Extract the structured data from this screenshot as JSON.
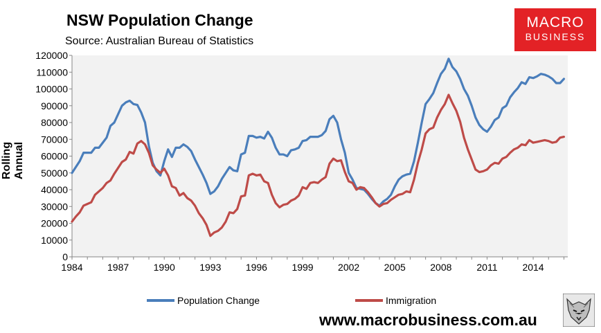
{
  "header": {
    "title": "NSW Population Change",
    "source": "Source: Australian Bureau of Statistics"
  },
  "logo": {
    "line1": "MACRO",
    "line2": "BUSINESS"
  },
  "footer": {
    "url": "www.macrobusiness.com.au"
  },
  "colors": {
    "population": "#4a7ebb",
    "immigration": "#be4b48",
    "plot_bg": "#f2f2f2",
    "logo_bg": "#e32226"
  },
  "chart_data": {
    "type": "line",
    "title": "NSW Population Change",
    "ylabel": "Rolling Annual",
    "xlabel": "",
    "ylim": [
      0,
      120000
    ],
    "xlim": [
      1984,
      2016.25
    ],
    "yticks": [
      0,
      10000,
      20000,
      30000,
      40000,
      50000,
      60000,
      70000,
      80000,
      90000,
      100000,
      110000,
      120000
    ],
    "xticks": [
      1984,
      1987,
      1990,
      1993,
      1996,
      1999,
      2002,
      2005,
      2008,
      2011,
      2014
    ],
    "legend_position": "bottom",
    "grid": false,
    "series": [
      {
        "name": "Population Change",
        "color": "#4a7ebb",
        "points": [
          [
            1984.0,
            50000
          ],
          [
            1984.5,
            57000
          ],
          [
            1984.75,
            62000
          ],
          [
            1985.0,
            62000
          ],
          [
            1985.25,
            62000
          ],
          [
            1985.5,
            65000
          ],
          [
            1985.75,
            65000
          ],
          [
            1986.0,
            68000
          ],
          [
            1986.25,
            71000
          ],
          [
            1986.5,
            78000
          ],
          [
            1986.75,
            80000
          ],
          [
            1987.0,
            85000
          ],
          [
            1987.25,
            90000
          ],
          [
            1987.5,
            92000
          ],
          [
            1987.75,
            93000
          ],
          [
            1988.0,
            91000
          ],
          [
            1988.25,
            90500
          ],
          [
            1988.5,
            86000
          ],
          [
            1988.75,
            80000
          ],
          [
            1989.0,
            66000
          ],
          [
            1989.25,
            56000
          ],
          [
            1989.5,
            51000
          ],
          [
            1989.75,
            48500
          ],
          [
            1990.0,
            57000
          ],
          [
            1990.25,
            64000
          ],
          [
            1990.5,
            59500
          ],
          [
            1990.75,
            65000
          ],
          [
            1991.0,
            65000
          ],
          [
            1991.25,
            67000
          ],
          [
            1991.5,
            65500
          ],
          [
            1991.75,
            63000
          ],
          [
            1992.0,
            58000
          ],
          [
            1992.25,
            53500
          ],
          [
            1992.5,
            49000
          ],
          [
            1992.75,
            44000
          ],
          [
            1993.0,
            37500
          ],
          [
            1993.25,
            39000
          ],
          [
            1993.5,
            42000
          ],
          [
            1993.75,
            46500
          ],
          [
            1994.0,
            50000
          ],
          [
            1994.25,
            53500
          ],
          [
            1994.5,
            51500
          ],
          [
            1994.75,
            51000
          ],
          [
            1995.0,
            61000
          ],
          [
            1995.25,
            62000
          ],
          [
            1995.5,
            72000
          ],
          [
            1995.75,
            72000
          ],
          [
            1996.0,
            71000
          ],
          [
            1996.25,
            71500
          ],
          [
            1996.5,
            70500
          ],
          [
            1996.75,
            74500
          ],
          [
            1997.0,
            71000
          ],
          [
            1997.25,
            65000
          ],
          [
            1997.5,
            61000
          ],
          [
            1997.75,
            61000
          ],
          [
            1998.0,
            60000
          ],
          [
            1998.25,
            63500
          ],
          [
            1998.5,
            64000
          ],
          [
            1998.75,
            65000
          ],
          [
            1999.0,
            69000
          ],
          [
            1999.25,
            69500
          ],
          [
            1999.5,
            71500
          ],
          [
            1999.75,
            71500
          ],
          [
            2000.0,
            71500
          ],
          [
            2000.25,
            72500
          ],
          [
            2000.5,
            75000
          ],
          [
            2000.75,
            82000
          ],
          [
            2001.0,
            84000
          ],
          [
            2001.25,
            80000
          ],
          [
            2001.5,
            70000
          ],
          [
            2001.75,
            62000
          ],
          [
            2002.0,
            50000
          ],
          [
            2002.25,
            46000
          ],
          [
            2002.5,
            41000
          ],
          [
            2002.75,
            40500
          ],
          [
            2003.0,
            40000
          ],
          [
            2003.25,
            37500
          ],
          [
            2003.5,
            34500
          ],
          [
            2003.75,
            32000
          ],
          [
            2004.0,
            30500
          ],
          [
            2004.25,
            33000
          ],
          [
            2004.5,
            34500
          ],
          [
            2004.75,
            37000
          ],
          [
            2005.0,
            42000
          ],
          [
            2005.25,
            46000
          ],
          [
            2005.5,
            48000
          ],
          [
            2005.75,
            49000
          ],
          [
            2006.0,
            49500
          ],
          [
            2006.25,
            57000
          ],
          [
            2006.5,
            68000
          ],
          [
            2006.75,
            80000
          ],
          [
            2007.0,
            91000
          ],
          [
            2007.25,
            94000
          ],
          [
            2007.5,
            97500
          ],
          [
            2007.75,
            103500
          ],
          [
            2008.0,
            109000
          ],
          [
            2008.25,
            112000
          ],
          [
            2008.5,
            118000
          ],
          [
            2008.75,
            113000
          ],
          [
            2009.0,
            110500
          ],
          [
            2009.25,
            106000
          ],
          [
            2009.5,
            100000
          ],
          [
            2009.75,
            96000
          ],
          [
            2010.0,
            90000
          ],
          [
            2010.25,
            83000
          ],
          [
            2010.5,
            78500
          ],
          [
            2010.75,
            76000
          ],
          [
            2011.0,
            74500
          ],
          [
            2011.25,
            77500
          ],
          [
            2011.5,
            81500
          ],
          [
            2011.75,
            83000
          ],
          [
            2012.0,
            88500
          ],
          [
            2012.25,
            90000
          ],
          [
            2012.5,
            95000
          ],
          [
            2012.75,
            98000
          ],
          [
            2013.0,
            100500
          ],
          [
            2013.25,
            104000
          ],
          [
            2013.5,
            103000
          ],
          [
            2013.75,
            107000
          ],
          [
            2014.0,
            106500
          ],
          [
            2014.25,
            107500
          ],
          [
            2014.5,
            109000
          ],
          [
            2014.75,
            108500
          ],
          [
            2015.0,
            107500
          ],
          [
            2015.25,
            106000
          ],
          [
            2015.5,
            103500
          ],
          [
            2015.75,
            103500
          ],
          [
            2016.0,
            106000
          ]
        ]
      },
      {
        "name": "Immigration",
        "color": "#be4b48",
        "points": [
          [
            1984.0,
            21000
          ],
          [
            1984.25,
            24000
          ],
          [
            1984.5,
            26500
          ],
          [
            1984.75,
            30500
          ],
          [
            1985.0,
            31500
          ],
          [
            1985.25,
            32500
          ],
          [
            1985.5,
            37000
          ],
          [
            1985.75,
            39000
          ],
          [
            1986.0,
            41000
          ],
          [
            1986.25,
            44000
          ],
          [
            1986.5,
            45500
          ],
          [
            1986.75,
            49500
          ],
          [
            1987.0,
            53000
          ],
          [
            1987.25,
            56500
          ],
          [
            1987.5,
            58000
          ],
          [
            1987.75,
            62500
          ],
          [
            1988.0,
            61500
          ],
          [
            1988.25,
            67500
          ],
          [
            1988.5,
            69000
          ],
          [
            1988.75,
            67000
          ],
          [
            1989.0,
            62000
          ],
          [
            1989.25,
            54500
          ],
          [
            1989.5,
            52000
          ],
          [
            1989.75,
            50000
          ],
          [
            1990.0,
            52500
          ],
          [
            1990.25,
            48500
          ],
          [
            1990.5,
            42000
          ],
          [
            1990.75,
            41000
          ],
          [
            1991.0,
            36500
          ],
          [
            1991.25,
            38000
          ],
          [
            1991.5,
            35000
          ],
          [
            1991.75,
            33500
          ],
          [
            1992.0,
            30500
          ],
          [
            1992.25,
            26000
          ],
          [
            1992.5,
            23000
          ],
          [
            1992.75,
            19000
          ],
          [
            1993.0,
            12500
          ],
          [
            1993.25,
            14500
          ],
          [
            1993.5,
            15500
          ],
          [
            1993.75,
            17500
          ],
          [
            1994.0,
            21000
          ],
          [
            1994.25,
            26500
          ],
          [
            1994.5,
            26000
          ],
          [
            1994.75,
            28500
          ],
          [
            1995.0,
            36000
          ],
          [
            1995.25,
            36500
          ],
          [
            1995.5,
            48500
          ],
          [
            1995.75,
            49500
          ],
          [
            1996.0,
            48500
          ],
          [
            1996.25,
            49000
          ],
          [
            1996.5,
            45000
          ],
          [
            1996.75,
            44000
          ],
          [
            1997.0,
            37000
          ],
          [
            1997.25,
            32000
          ],
          [
            1997.5,
            29500
          ],
          [
            1997.75,
            31000
          ],
          [
            1998.0,
            31500
          ],
          [
            1998.25,
            33500
          ],
          [
            1998.5,
            34500
          ],
          [
            1998.75,
            36500
          ],
          [
            1999.0,
            41500
          ],
          [
            1999.25,
            40500
          ],
          [
            1999.5,
            44000
          ],
          [
            1999.75,
            44500
          ],
          [
            2000.0,
            44000
          ],
          [
            2000.25,
            46000
          ],
          [
            2000.5,
            47500
          ],
          [
            2000.75,
            55500
          ],
          [
            2001.0,
            58500
          ],
          [
            2001.25,
            57000
          ],
          [
            2001.5,
            57500
          ],
          [
            2001.75,
            50500
          ],
          [
            2002.0,
            45000
          ],
          [
            2002.25,
            44000
          ],
          [
            2002.5,
            40000
          ],
          [
            2002.75,
            41500
          ],
          [
            2003.0,
            41000
          ],
          [
            2003.25,
            38500
          ],
          [
            2003.5,
            35500
          ],
          [
            2003.75,
            32000
          ],
          [
            2004.0,
            30000
          ],
          [
            2004.25,
            31500
          ],
          [
            2004.5,
            32000
          ],
          [
            2004.75,
            34000
          ],
          [
            2005.0,
            35500
          ],
          [
            2005.25,
            37000
          ],
          [
            2005.5,
            37500
          ],
          [
            2005.75,
            39000
          ],
          [
            2006.0,
            38500
          ],
          [
            2006.25,
            46000
          ],
          [
            2006.5,
            56000
          ],
          [
            2006.75,
            64000
          ],
          [
            2007.0,
            73500
          ],
          [
            2007.25,
            76000
          ],
          [
            2007.5,
            77000
          ],
          [
            2007.75,
            83000
          ],
          [
            2008.0,
            87500
          ],
          [
            2008.25,
            91000
          ],
          [
            2008.5,
            96500
          ],
          [
            2008.75,
            91500
          ],
          [
            2009.0,
            87000
          ],
          [
            2009.25,
            80500
          ],
          [
            2009.5,
            71000
          ],
          [
            2009.75,
            64000
          ],
          [
            2010.0,
            58000
          ],
          [
            2010.25,
            52000
          ],
          [
            2010.5,
            50500
          ],
          [
            2010.75,
            51000
          ],
          [
            2011.0,
            52000
          ],
          [
            2011.25,
            54500
          ],
          [
            2011.5,
            56000
          ],
          [
            2011.75,
            55500
          ],
          [
            2012.0,
            58500
          ],
          [
            2012.25,
            59500
          ],
          [
            2012.5,
            62000
          ],
          [
            2012.75,
            64000
          ],
          [
            2013.0,
            65000
          ],
          [
            2013.25,
            67000
          ],
          [
            2013.5,
            66500
          ],
          [
            2013.75,
            69500
          ],
          [
            2014.0,
            68000
          ],
          [
            2014.25,
            68500
          ],
          [
            2014.5,
            69000
          ],
          [
            2014.75,
            69500
          ],
          [
            2015.0,
            69000
          ],
          [
            2015.25,
            68000
          ],
          [
            2015.5,
            68500
          ],
          [
            2015.75,
            71000
          ],
          [
            2016.0,
            71500
          ]
        ]
      }
    ]
  }
}
